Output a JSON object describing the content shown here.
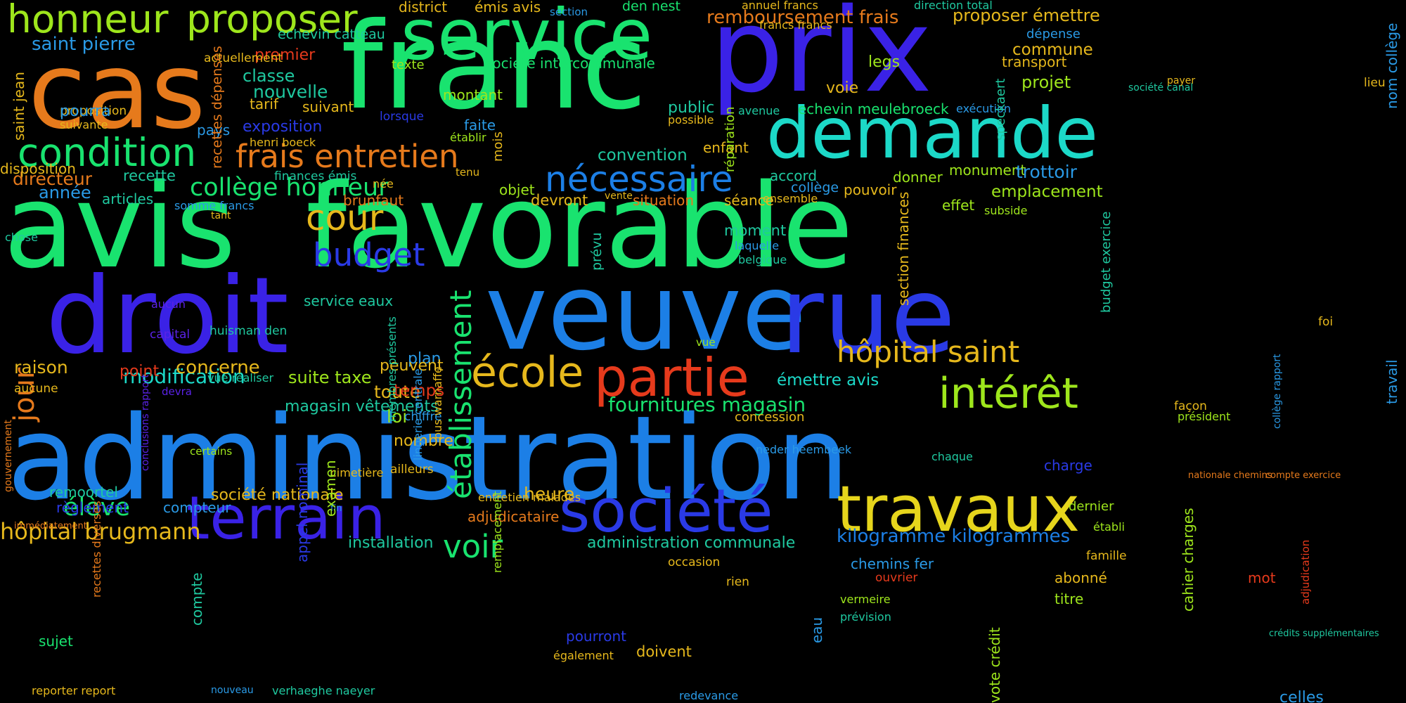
{
  "palette": {
    "green": "#19e36f",
    "blue": "#1c7fe6",
    "indigo": "#3a22e6",
    "deepblue": "#2a3ae6",
    "cyan": "#1cd9c8",
    "teal": "#1fc9a0",
    "orange": "#e67a1c",
    "red": "#e63a1c",
    "yellow": "#e6d51c",
    "lime": "#9ee61c",
    "gold": "#e6b81c",
    "mint": "#2ee68a",
    "sky": "#2a9ae6",
    "violet": "#5a22e6",
    "chartreuse": "#c6e61c"
  },
  "words": [
    {
      "text": "administration"
    },
    {
      "text": "avis"
    },
    {
      "text": "favorable"
    },
    {
      "text": "franc"
    },
    {
      "text": "prix"
    },
    {
      "text": "cas"
    },
    {
      "text": "veuve"
    },
    {
      "text": "rue"
    },
    {
      "text": "droit"
    },
    {
      "text": "service"
    },
    {
      "text": "demande"
    },
    {
      "text": "travaux"
    },
    {
      "text": "société"
    },
    {
      "text": "terrain"
    },
    {
      "text": "partie"
    },
    {
      "text": "école"
    },
    {
      "text": "intérêt"
    },
    {
      "text": "condition"
    },
    {
      "text": "honneur"
    },
    {
      "text": "proposer"
    },
    {
      "text": "nécessaire"
    },
    {
      "text": "frais entretien"
    },
    {
      "text": "cour"
    },
    {
      "text": "budget"
    },
    {
      "text": "voir"
    },
    {
      "text": "hôpital saint"
    },
    {
      "text": "établissement"
    },
    {
      "text": "collège honneur"
    },
    {
      "text": "jour"
    },
    {
      "text": "élève"
    },
    {
      "text": "hôpital brugmann"
    },
    {
      "text": "modification"
    },
    {
      "text": "fournitures magasin"
    },
    {
      "text": "suite taxe"
    },
    {
      "text": "toute"
    },
    {
      "text": "heure"
    },
    {
      "text": "magasin vêtements"
    },
    {
      "text": "société nationale"
    },
    {
      "text": "kilogramme kilogrammes"
    },
    {
      "text": "administration communale"
    },
    {
      "text": "installation"
    },
    {
      "text": "émettre avis"
    },
    {
      "text": "remboursement frais"
    },
    {
      "text": "proposer émettre"
    },
    {
      "text": "saint pierre"
    },
    {
      "text": "echevin catteau"
    },
    {
      "text": "société intercommunale"
    },
    {
      "text": "echevin meulebroeck"
    },
    {
      "text": "premier"
    },
    {
      "text": "classe"
    },
    {
      "text": "nouvelle"
    },
    {
      "text": "tarif"
    },
    {
      "text": "suivant"
    },
    {
      "text": "exposition"
    },
    {
      "text": "pays"
    },
    {
      "text": "montant"
    },
    {
      "text": "faite"
    },
    {
      "text": "texte"
    },
    {
      "text": "district"
    },
    {
      "text": "émis avis"
    },
    {
      "text": "den nest"
    },
    {
      "text": "section"
    },
    {
      "text": "annuel francs"
    },
    {
      "text": "francs francs"
    },
    {
      "text": "direction total"
    },
    {
      "text": "dépense"
    },
    {
      "text": "commune"
    },
    {
      "text": "transport"
    },
    {
      "text": "projet"
    },
    {
      "text": "legs"
    },
    {
      "text": "voie"
    },
    {
      "text": "public"
    },
    {
      "text": "possible"
    },
    {
      "text": "avenue"
    },
    {
      "text": "exécution"
    },
    {
      "text": "convention"
    },
    {
      "text": "enfant"
    },
    {
      "text": "accord"
    },
    {
      "text": "collège"
    },
    {
      "text": "pouvoir"
    },
    {
      "text": "donner"
    },
    {
      "text": "monument"
    },
    {
      "text": "trottoir"
    },
    {
      "text": "emplacement"
    },
    {
      "text": "effet"
    },
    {
      "text": "subside"
    },
    {
      "text": "objet"
    },
    {
      "text": "devront"
    },
    {
      "text": "situation"
    },
    {
      "text": "séance"
    },
    {
      "text": "ensemble"
    },
    {
      "text": "vente"
    },
    {
      "text": "moment"
    },
    {
      "text": "laquelle"
    },
    {
      "text": "belgique"
    },
    {
      "text": "brunfaut"
    },
    {
      "text": "service eaux"
    },
    {
      "text": "directeur"
    },
    {
      "text": "recette"
    },
    {
      "text": "année"
    },
    {
      "text": "articles"
    },
    {
      "text": "somme francs"
    },
    {
      "text": "chose"
    },
    {
      "text": "tant"
    },
    {
      "text": "disposition"
    },
    {
      "text": "henri boeck"
    },
    {
      "text": "proposition"
    },
    {
      "text": "pourra"
    },
    {
      "text": "suivante"
    },
    {
      "text": "actuellement"
    },
    {
      "text": "lorsque"
    },
    {
      "text": "établir"
    },
    {
      "text": "tenu"
    },
    {
      "text": "finances émis"
    },
    {
      "text": "née"
    },
    {
      "text": "raison"
    },
    {
      "text": "aucune"
    },
    {
      "text": "point"
    },
    {
      "text": "concerne"
    },
    {
      "text": "vue réaliser"
    },
    {
      "text": "plan"
    },
    {
      "text": "peuvent"
    },
    {
      "text": "temps"
    },
    {
      "text": "loi"
    },
    {
      "text": "nombre"
    },
    {
      "text": "chiffre"
    },
    {
      "text": "ailleurs"
    },
    {
      "text": "cimetière"
    },
    {
      "text": "fin"
    },
    {
      "text": "entretien malades"
    },
    {
      "text": "adjudicataire"
    },
    {
      "text": "remoortel"
    },
    {
      "text": "règlement"
    },
    {
      "text": "compteur"
    },
    {
      "text": "immédiatement"
    },
    {
      "text": "huisman den"
    },
    {
      "text": "capital"
    },
    {
      "text": "aucun"
    },
    {
      "text": "devra"
    },
    {
      "text": "certains"
    },
    {
      "text": "sujet"
    },
    {
      "text": "reporter report"
    },
    {
      "text": "nouveau"
    },
    {
      "text": "verhaeghe naeyer"
    },
    {
      "text": "pourront"
    },
    {
      "text": "également"
    },
    {
      "text": "doivent"
    },
    {
      "text": "redevance"
    },
    {
      "text": "occasion"
    },
    {
      "text": "rien"
    },
    {
      "text": "chemins fer"
    },
    {
      "text": "ouvrier"
    },
    {
      "text": "vermeire"
    },
    {
      "text": "prévision"
    },
    {
      "text": "abonné"
    },
    {
      "text": "titre"
    },
    {
      "text": "mot"
    },
    {
      "text": "famille"
    },
    {
      "text": "dernier"
    },
    {
      "text": "établi"
    },
    {
      "text": "président"
    },
    {
      "text": "charge"
    },
    {
      "text": "neder heembeek"
    },
    {
      "text": "chaque"
    },
    {
      "text": "concession"
    },
    {
      "text": "façon"
    },
    {
      "text": "nationale chemins"
    },
    {
      "text": "compte exercice"
    },
    {
      "text": "crédits supplémentaires"
    },
    {
      "text": "celles"
    },
    {
      "text": "foi"
    },
    {
      "text": "vue"
    },
    {
      "text": "lieu"
    },
    {
      "text": "société canal"
    },
    {
      "text": "payer"
    },
    {
      "text": "saint jean"
    },
    {
      "text": "recettes dépenses"
    },
    {
      "text": "mois"
    },
    {
      "text": "réparation"
    },
    {
      "text": "speckaert"
    },
    {
      "text": "nom collège"
    },
    {
      "text": "prévu"
    },
    {
      "text": "section finances"
    },
    {
      "text": "budget exercice"
    },
    {
      "text": "travail"
    },
    {
      "text": "collège rapport"
    },
    {
      "text": "gouvernement"
    },
    {
      "text": "conclusions rapport"
    },
    {
      "text": "membres présents"
    },
    {
      "text": "lingerie centrale"
    },
    {
      "text": "bus warnaffe"
    },
    {
      "text": "examen"
    },
    {
      "text": "appel nominal"
    },
    {
      "text": "compte"
    },
    {
      "text": "recettes diverses"
    },
    {
      "text": "remplacement"
    },
    {
      "text": "eau"
    },
    {
      "text": "vote crédit"
    },
    {
      "text": "cahier charges"
    },
    {
      "text": "adjudication"
    },
    {
      "text": "propriétaire"
    }
  ]
}
